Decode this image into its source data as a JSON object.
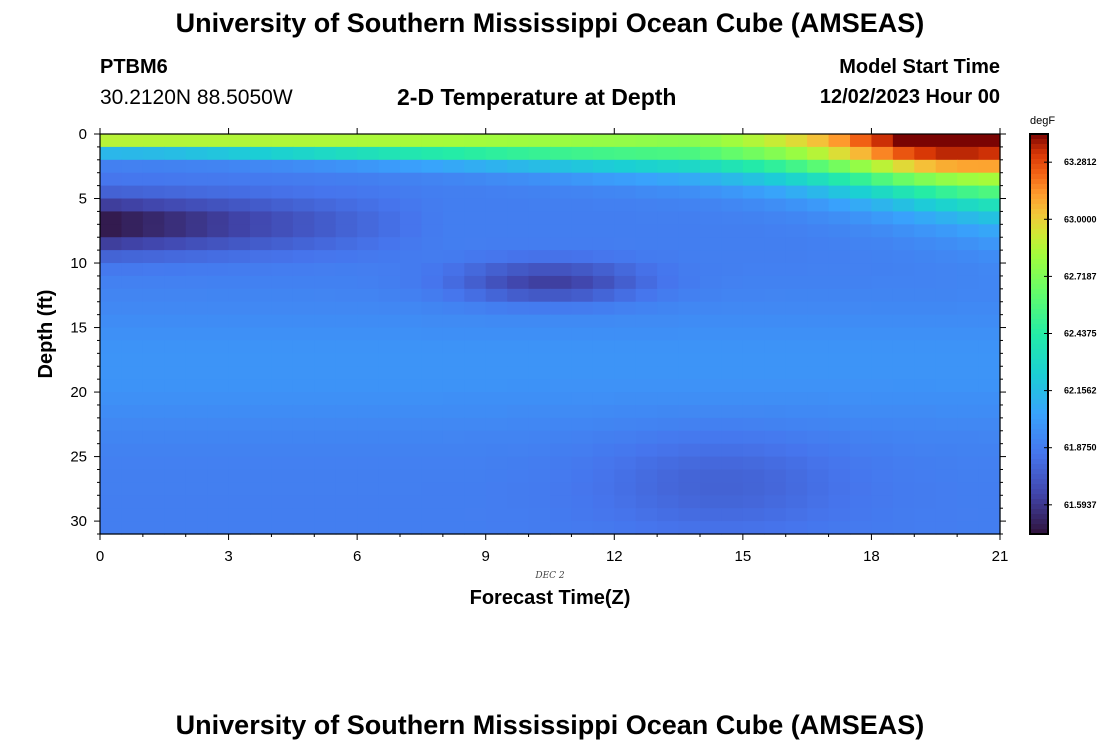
{
  "header": {
    "title": "University of Southern Mississippi Ocean Cube (AMSEAS)",
    "station": "PTBM6",
    "coords": "30.2120N  88.5050W",
    "plot_title": "2-D Temperature at Depth",
    "model_start_label": "Model Start Time",
    "model_start_value": "12/02/2023 Hour 00"
  },
  "footer": {
    "title": "University of Southern Mississippi Ocean Cube (AMSEAS)"
  },
  "chart_data": {
    "type": "heatmap",
    "title": "2-D Temperature at Depth",
    "xlabel": "Forecast Time(Z)",
    "ylabel": "Depth (ft)",
    "date_label": "DEC 2",
    "xlim": [
      0,
      21
    ],
    "ylim": [
      31,
      0
    ],
    "x_ticks": [
      0,
      3,
      6,
      9,
      12,
      15,
      18,
      21
    ],
    "y_ticks": [
      0,
      5,
      10,
      15,
      20,
      25,
      30
    ],
    "colorbar": {
      "unit": "degF",
      "min": 61.45,
      "max": 63.42,
      "ticks": [
        "63.2812",
        "63.0000",
        "62.7187",
        "62.4375",
        "62.1562",
        "61.8750",
        "61.5937"
      ],
      "tick_values": [
        63.2812,
        63.0,
        62.7187,
        62.4375,
        62.1562,
        61.875,
        61.5937
      ]
    },
    "nx": 42,
    "ny": 31
  }
}
